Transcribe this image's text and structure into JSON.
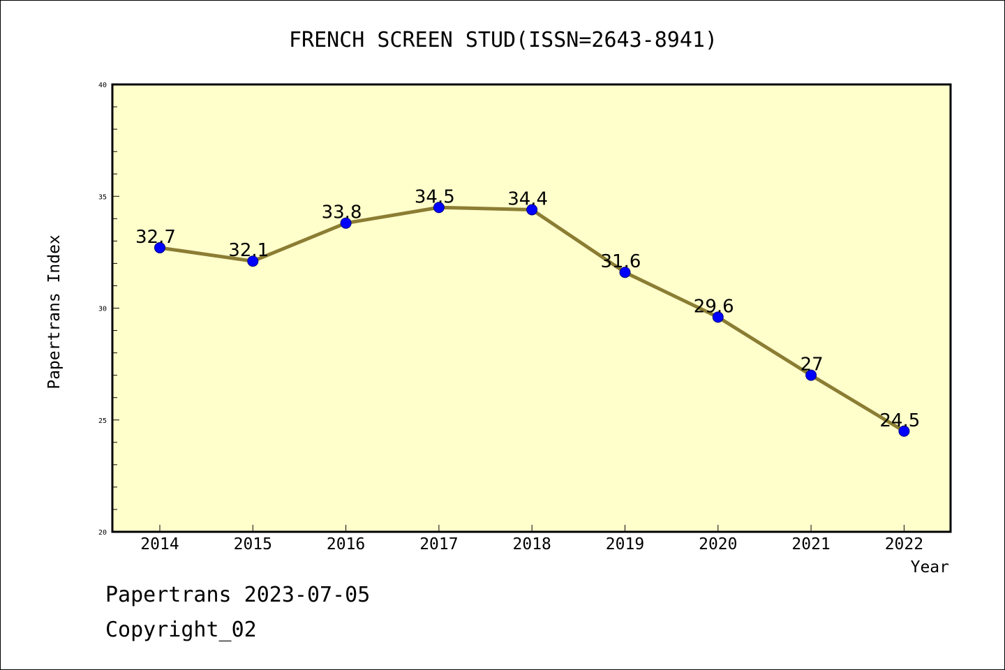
{
  "chart_data": {
    "type": "line",
    "title": "FRENCH SCREEN STUD(ISSN=2643-8941)",
    "xlabel": "Year",
    "ylabel": "Papertrans Index",
    "categories": [
      "2014",
      "2015",
      "2016",
      "2017",
      "2018",
      "2019",
      "2020",
      "2021",
      "2022"
    ],
    "series": [
      {
        "values": [
          32.7,
          32.1,
          33.8,
          34.5,
          34.4,
          31.6,
          29.6,
          27,
          24.5
        ],
        "labels": [
          "32.7",
          "32.1",
          "33.8",
          "34.5",
          "34.4",
          "31.6",
          "29.6",
          "27",
          "24.5"
        ]
      }
    ],
    "ylim": [
      20,
      40
    ],
    "yticks": [
      "20",
      "25",
      "30",
      "35",
      "40"
    ],
    "grid": false,
    "legend": "none",
    "colors": {
      "plot_background": "#ffffcc",
      "line": "#8b7d33",
      "marker": "#0000ff",
      "marker_edge": "#000080"
    }
  },
  "footer": {
    "line1": "Papertrans 2023-07-05",
    "line2": "Copyright_02"
  }
}
